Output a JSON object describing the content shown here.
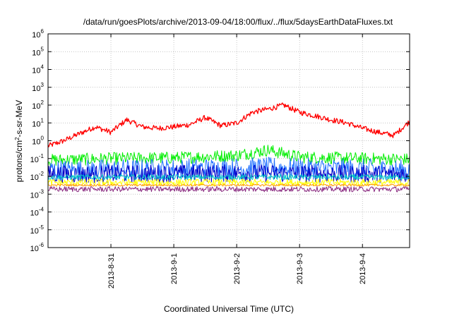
{
  "chart_data": {
    "type": "line",
    "title": "/data/run/goesPlots/archive/2013-09-04/18:00/flux/../flux/5daysEarthDataFluxes.txt",
    "xlabel": "Coordinated Universal Time (UTC)",
    "ylabel": "protons/cm²-s-sr-MeV",
    "y_scale": "log",
    "ylim": [
      1e-06,
      1000000.0
    ],
    "xlim": [
      "2013-08-30T00:00",
      "2013-09-04T18:00"
    ],
    "grid": true,
    "x_ticks": [
      {
        "value": "2013-08-31",
        "label": "2013-8-31"
      },
      {
        "value": "2013-09-01",
        "label": "2013-9-1"
      },
      {
        "value": "2013-09-02",
        "label": "2013-9-2"
      },
      {
        "value": "2013-09-03",
        "label": "2013-9-3"
      },
      {
        "value": "2013-09-04",
        "label": "2013-9-4"
      }
    ],
    "y_ticks": [
      {
        "base": "10",
        "exp": "6"
      },
      {
        "base": "10",
        "exp": "5"
      },
      {
        "base": "10",
        "exp": "4"
      },
      {
        "base": "10",
        "exp": "3"
      },
      {
        "base": "10",
        "exp": "2"
      },
      {
        "base": "10",
        "exp": "1"
      },
      {
        "base": "10",
        "exp": "0"
      },
      {
        "base": "10",
        "exp": "-1"
      },
      {
        "base": "10",
        "exp": "-2"
      },
      {
        "base": "10",
        "exp": "-3"
      },
      {
        "base": "10",
        "exp": "-4"
      },
      {
        "base": "10",
        "exp": "-5"
      },
      {
        "base": "10",
        "exp": "-6"
      }
    ],
    "series": [
      {
        "color": "#ff0000",
        "x": [
          "2013-08-30T00:00",
          "2013-08-30T06:00",
          "2013-08-30T12:00",
          "2013-08-30T18:00",
          "2013-08-31T00:00",
          "2013-08-31T06:00",
          "2013-08-31T12:00",
          "2013-08-31T18:00",
          "2013-09-01T00:00",
          "2013-09-01T06:00",
          "2013-09-01T12:00",
          "2013-09-01T18:00",
          "2013-09-02T00:00",
          "2013-09-02T06:00",
          "2013-09-02T12:00",
          "2013-09-02T18:00",
          "2013-09-03T00:00",
          "2013-09-03T06:00",
          "2013-09-03T12:00",
          "2013-09-03T18:00",
          "2013-09-04T00:00",
          "2013-09-04T06:00",
          "2013-09-04T12:00",
          "2013-09-04T18:00"
        ],
        "values": [
          0.5,
          1,
          2.5,
          6,
          3,
          15,
          6,
          5,
          6,
          8,
          20,
          7,
          10,
          40,
          60,
          100,
          40,
          25,
          15,
          10,
          5,
          3,
          2,
          12
        ],
        "noise": 0.15
      },
      {
        "color": "#00ee00",
        "x": [
          "2013-08-30T00:00",
          "2013-08-31T00:00",
          "2013-09-01T00:00",
          "2013-09-02T00:00",
          "2013-09-02T12:00",
          "2013-09-03T00:00",
          "2013-09-04T00:00",
          "2013-09-04T18:00"
        ],
        "values": [
          0.08,
          0.1,
          0.11,
          0.15,
          0.3,
          0.12,
          0.1,
          0.09
        ],
        "noise": 0.35
      },
      {
        "color": "#2070ff",
        "x": [
          "2013-08-30T00:00",
          "2013-09-01T00:00",
          "2013-09-02T12:00",
          "2013-09-04T18:00"
        ],
        "values": [
          0.022,
          0.025,
          0.03,
          0.022
        ],
        "noise": 0.6
      },
      {
        "color": "#0000c8",
        "x": [
          "2013-08-30T00:00",
          "2013-09-02T00:00",
          "2013-09-04T18:00"
        ],
        "values": [
          0.013,
          0.015,
          0.013
        ],
        "noise": 0.5
      },
      {
        "color": "#00c8c8",
        "x": [
          "2013-08-30T00:00",
          "2013-09-04T18:00"
        ],
        "values": [
          0.009,
          0.009
        ],
        "noise": 0.15
      },
      {
        "color": "#ffff00",
        "x": [
          "2013-08-30T00:00",
          "2013-09-04T18:00"
        ],
        "values": [
          0.0045,
          0.0045
        ],
        "noise": 0.2
      },
      {
        "color": "#ff9900",
        "x": [
          "2013-08-30T00:00",
          "2013-09-04T18:00"
        ],
        "values": [
          0.0032,
          0.0032
        ],
        "noise": 0.06
      },
      {
        "color": "#8a2a80",
        "x": [
          "2013-08-30T00:00",
          "2013-09-04T18:00"
        ],
        "values": [
          0.0019,
          0.0019
        ],
        "noise": 0.15
      }
    ]
  }
}
